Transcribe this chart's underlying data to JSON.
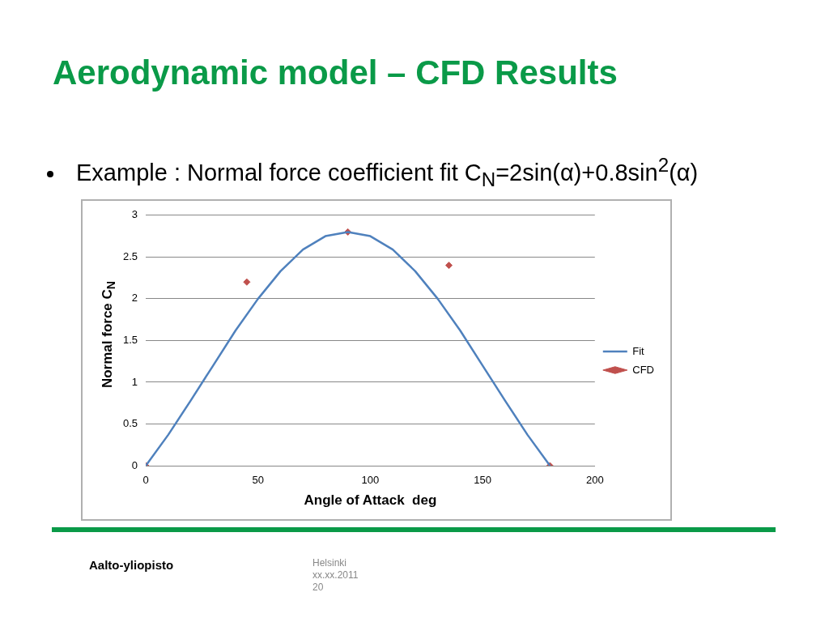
{
  "chart_data": {
    "type": "line",
    "title": "Aerodynamic model – CFD Results",
    "subtitle": "Example : Normal force coefficient fit C$_{N}$=2sin(α)+0.8sin$^{2}$(α)",
    "xlabel": "Angle of Attack  deg",
    "ylabel": "Normal force C$_{N}$",
    "series": [
      {
        "name": "Fit",
        "type": "line",
        "color": "#4f81bd",
        "marker": "none",
        "x": [
          0,
          10,
          20,
          30,
          40,
          50,
          60,
          70,
          80,
          90,
          100,
          110,
          120,
          130,
          140,
          150,
          160,
          170,
          180
        ],
        "values": [
          0,
          0.37,
          0.78,
          1.2,
          1.62,
          2.0,
          2.33,
          2.59,
          2.75,
          2.8,
          2.75,
          2.59,
          2.33,
          2.0,
          1.62,
          1.2,
          0.78,
          0.37,
          0
        ]
      },
      {
        "name": "CFD",
        "type": "scatter",
        "color": "#c0504d",
        "marker": "diamond",
        "x": [
          0,
          45,
          90,
          135,
          180
        ],
        "values": [
          0,
          2.2,
          2.8,
          2.4,
          0
        ]
      }
    ],
    "xlim": [
      0,
      200
    ],
    "xticks": [
      0,
      50,
      100,
      150,
      200
    ],
    "ylim": [
      0,
      3
    ],
    "yticks": [
      0,
      0.5,
      1,
      1.5,
      2,
      2.5,
      3
    ],
    "grid": "y",
    "legend": "right",
    "annotations": [
      "Aalto-yliopisto",
      "Helsinki",
      "xx.xx.2011",
      "20"
    ]
  }
}
